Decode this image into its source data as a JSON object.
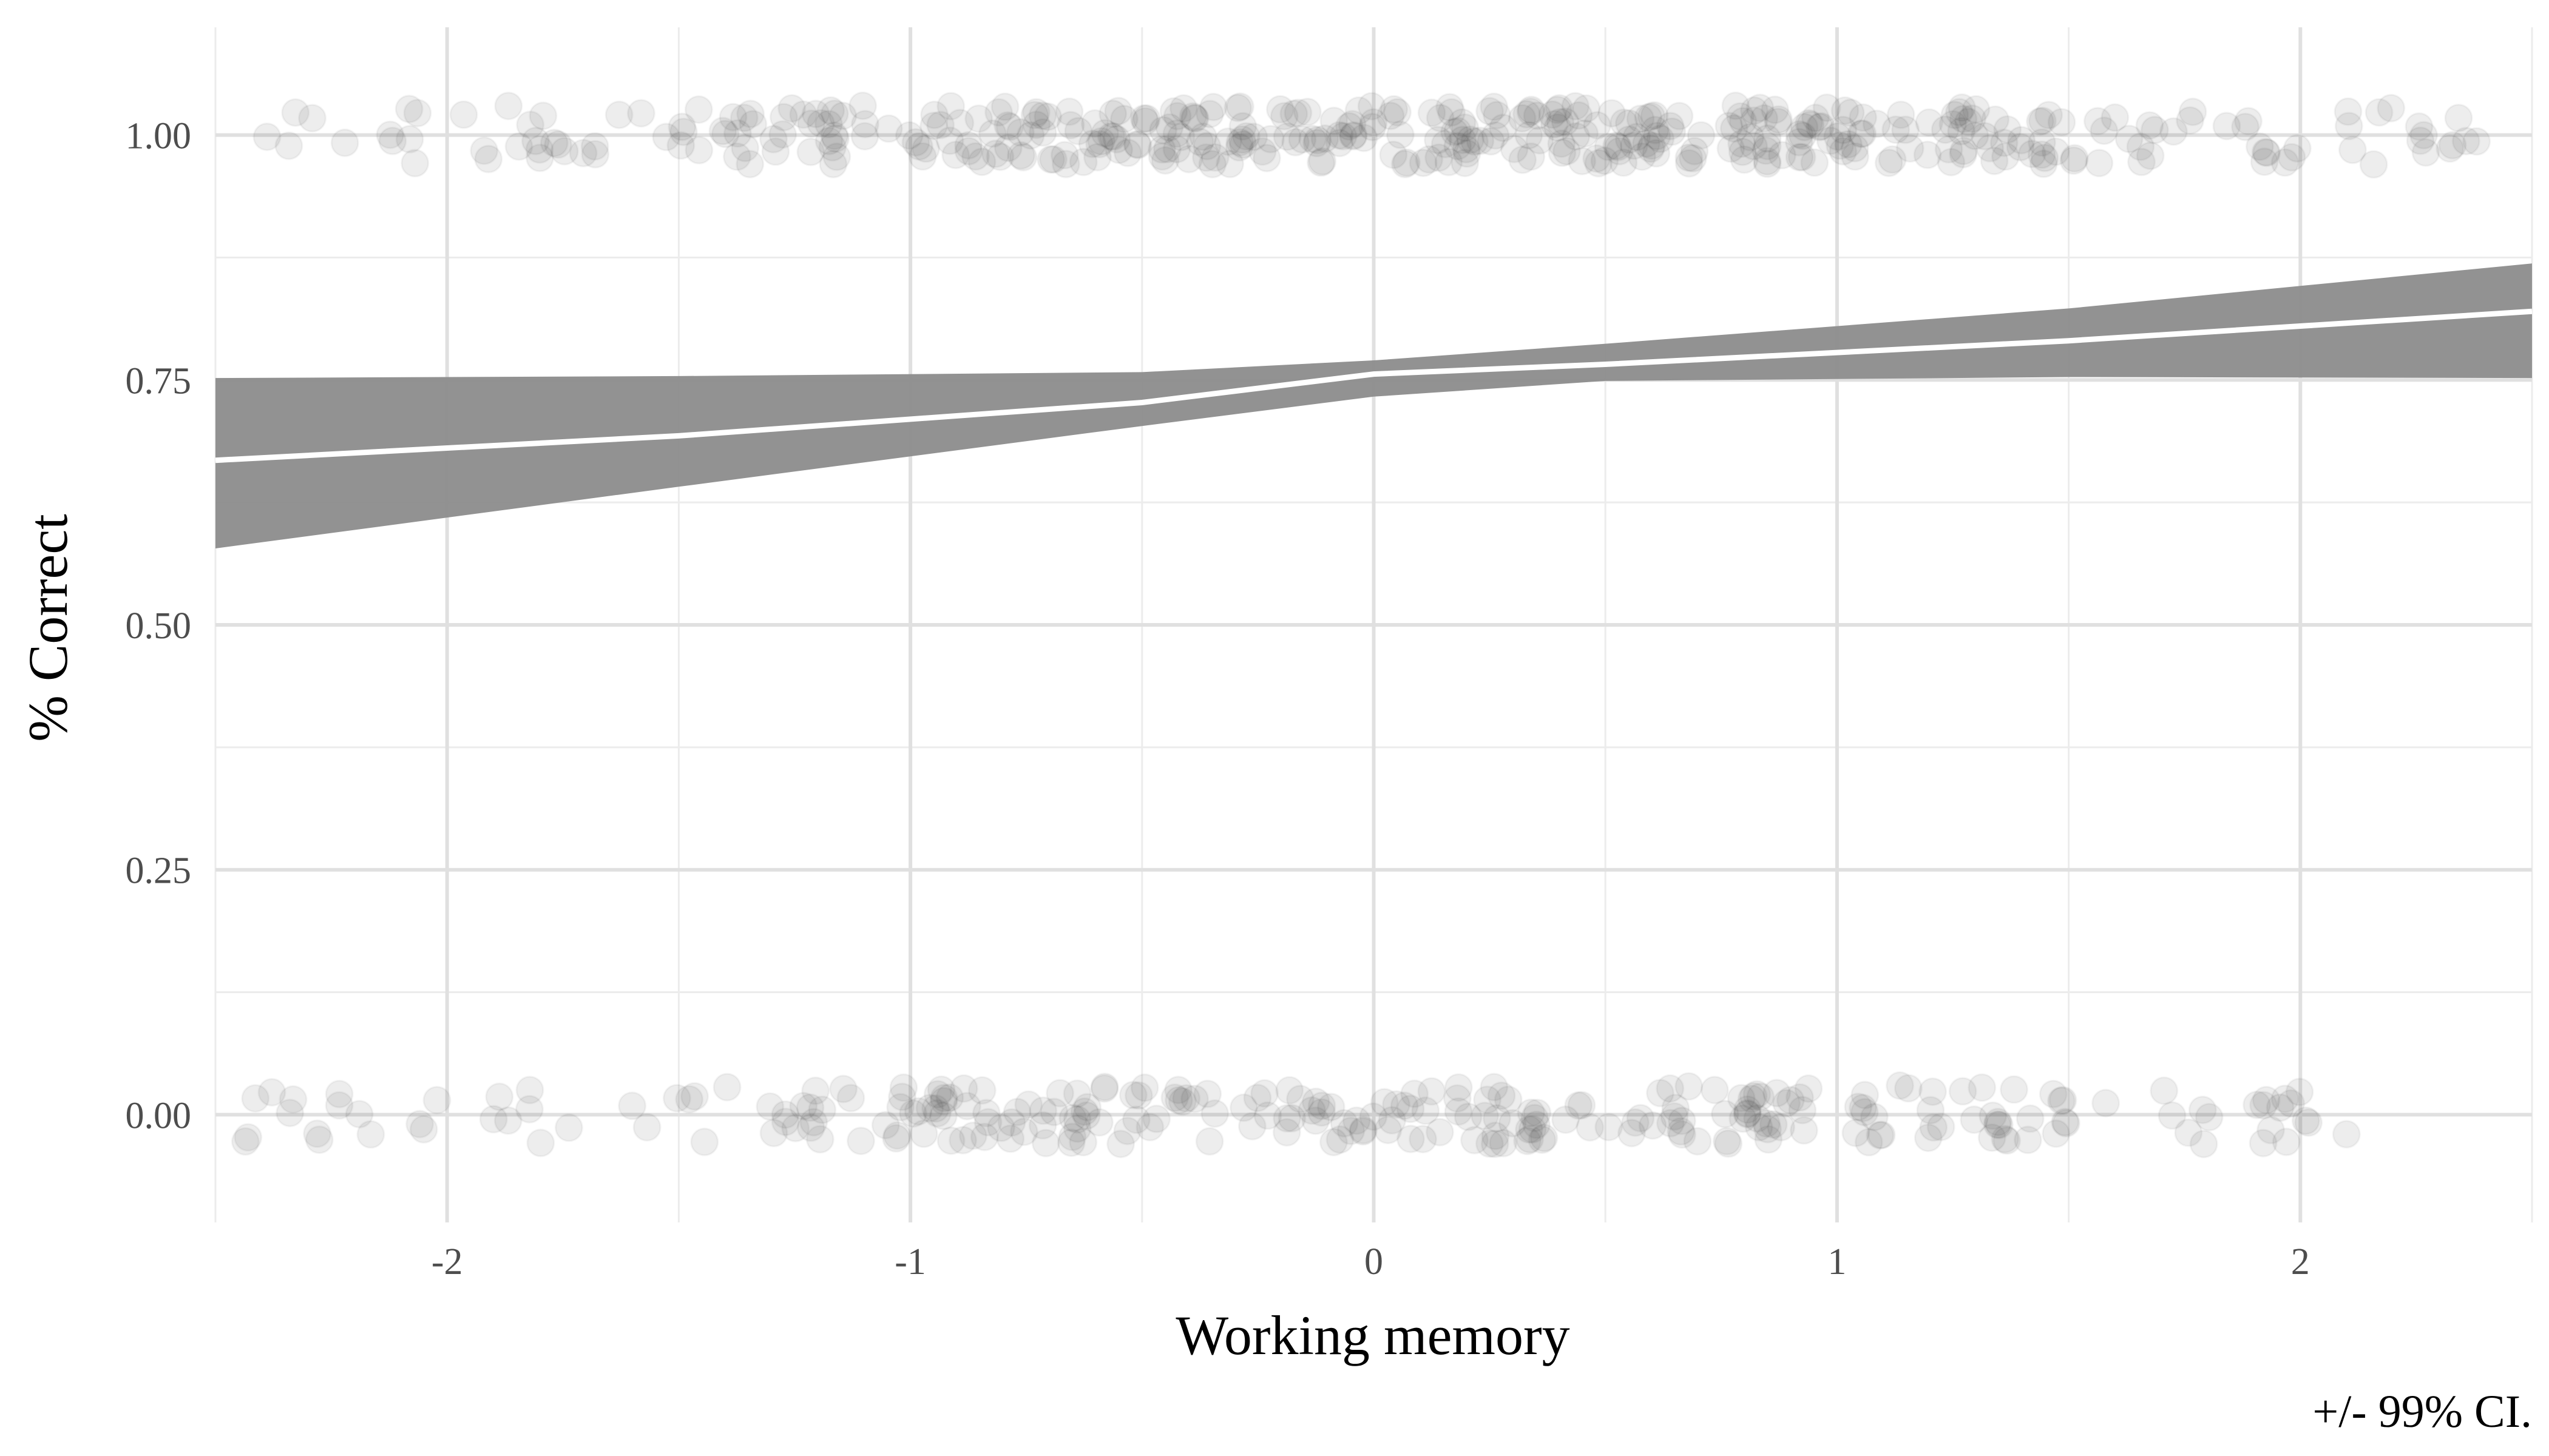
{
  "chart_data": {
    "type": "scatter",
    "title": "",
    "xlabel": "Working memory",
    "ylabel": "% Correct",
    "caption": "+/- 99% CI.",
    "xlim": [
      -2.5,
      2.5
    ],
    "ylim": [
      -0.11,
      1.11
    ],
    "x_ticks": [
      -2,
      -1,
      0,
      1,
      2
    ],
    "x_tick_labels": [
      "-2",
      "-1",
      "0",
      "1",
      "2"
    ],
    "y_ticks": [
      0,
      0.25,
      0.5,
      0.75,
      1.0
    ],
    "y_tick_labels": [
      "0.00",
      "0.25",
      "0.50",
      "0.75",
      "1.00"
    ],
    "grid": true,
    "colors": {
      "ribbon": "#8c8c8c",
      "fit_line": "#ffffff",
      "points": "#333333",
      "grid_major": "#e0e0e0",
      "grid_minor": "#ececec"
    },
    "fit": {
      "x": [
        -2.5,
        -1.5,
        -0.5,
        0,
        0.5,
        1.5,
        2.5
      ],
      "y": [
        0.668,
        0.693,
        0.727,
        0.756,
        0.766,
        0.79,
        0.82
      ]
    },
    "ribbon": {
      "x": [
        -2.5,
        -1.5,
        -0.5,
        0,
        0.5,
        1.5,
        2.5
      ],
      "lower": [
        0.578,
        0.641,
        0.703,
        0.733,
        0.749,
        0.753,
        0.752
      ],
      "upper": [
        0.752,
        0.754,
        0.758,
        0.77,
        0.787,
        0.823,
        0.869
      ]
    },
    "scatter_groups": [
      {
        "y": 1.0,
        "x_ranges": [
          [
            -2.5,
            -1.5,
            30
          ],
          [
            -1.5,
            -1.0,
            40
          ],
          [
            -1.0,
            1.0,
            260
          ],
          [
            1.0,
            1.5,
            55
          ],
          [
            1.5,
            2.4,
            40
          ]
        ]
      },
      {
        "y": 0.0,
        "x_ranges": [
          [
            -2.45,
            -1.5,
            25
          ],
          [
            -1.5,
            -1.0,
            25
          ],
          [
            -1.0,
            1.0,
            170
          ],
          [
            1.0,
            1.5,
            35
          ],
          [
            1.5,
            2.1,
            20
          ]
        ]
      }
    ],
    "jitter": 0.03,
    "point_alpha": 0.09
  }
}
